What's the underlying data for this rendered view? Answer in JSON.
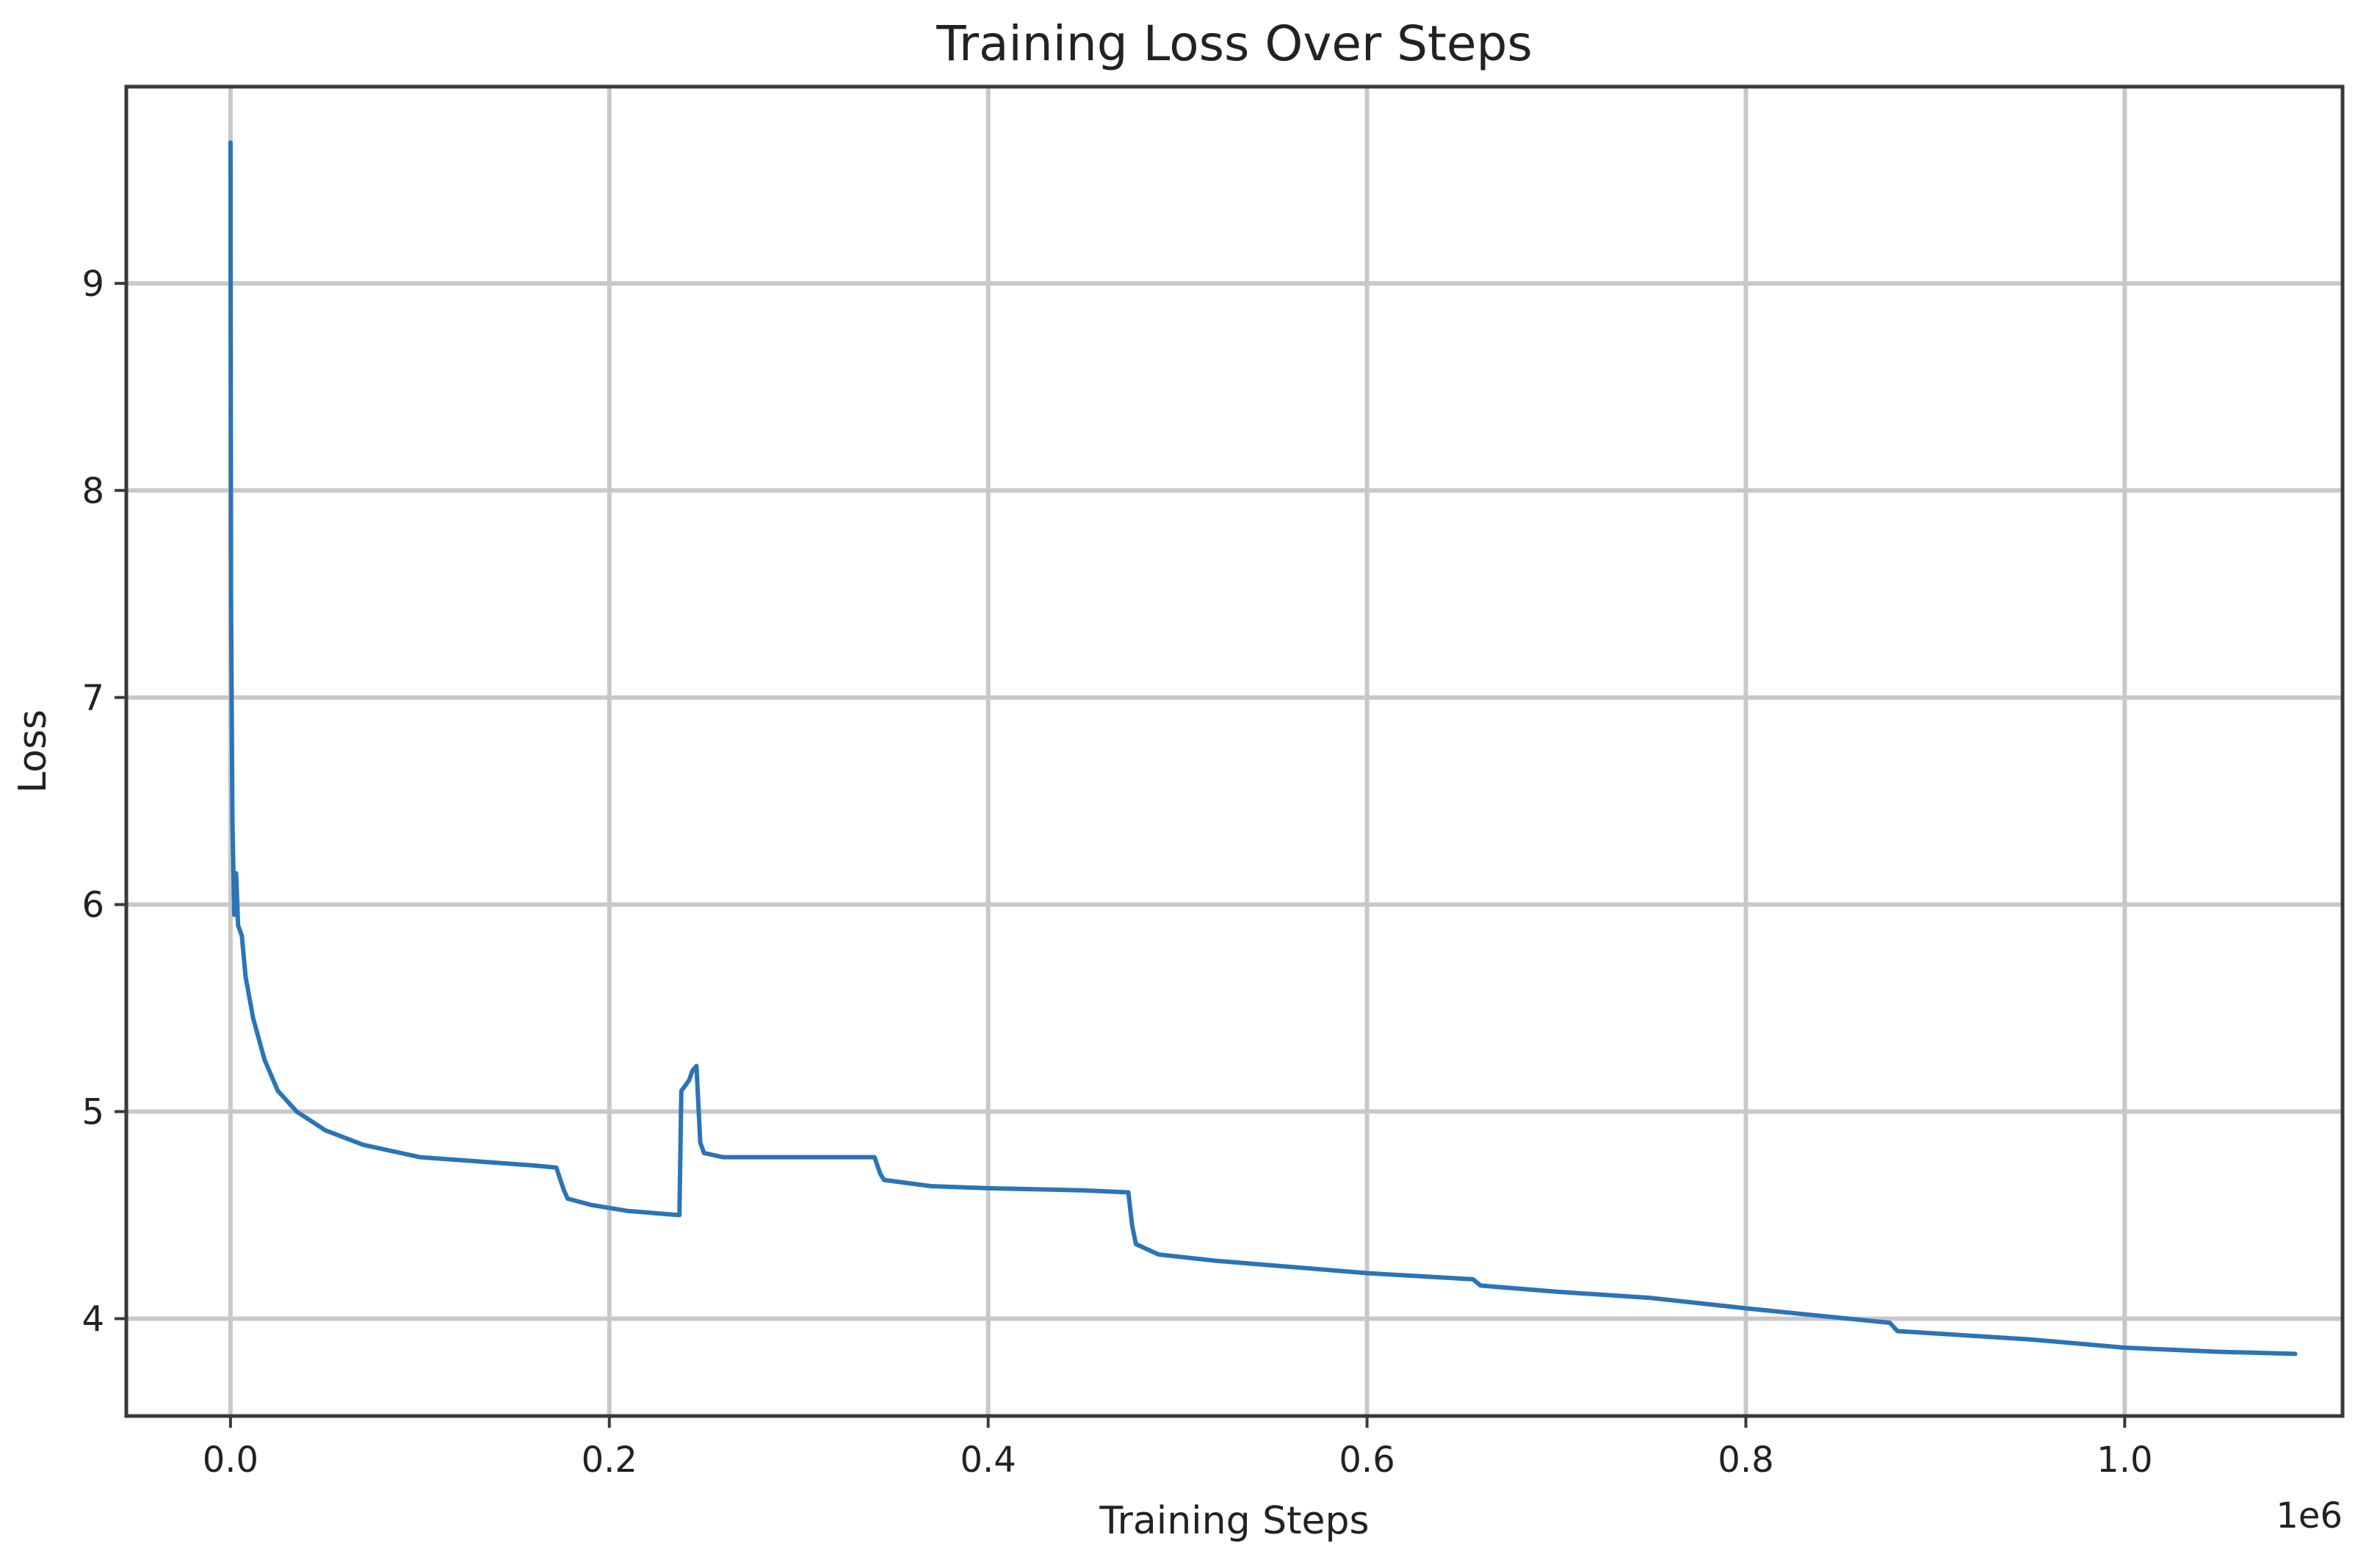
{
  "chart_data": {
    "type": "line",
    "title": "Training Loss Over Steps",
    "xlabel": "Training Steps",
    "ylabel": "Loss",
    "x_offset_label": "1e6",
    "xlim": [
      -0.055,
      1.115
    ],
    "ylim": [
      3.53,
      9.95
    ],
    "x_ticks": [
      0.0,
      0.2,
      0.4,
      0.6,
      0.8,
      1.0
    ],
    "x_tick_labels": [
      "0.0",
      "0.2",
      "0.4",
      "0.6",
      "0.8",
      "1.0"
    ],
    "y_ticks": [
      4,
      5,
      6,
      7,
      8,
      9
    ],
    "y_tick_labels": [
      "4",
      "5",
      "6",
      "7",
      "8",
      "9"
    ],
    "grid": true,
    "series": [
      {
        "color": "#2b74b6",
        "x": [
          0.0,
          0.0003,
          0.001,
          0.002,
          0.003,
          0.004,
          0.006,
          0.008,
          0.012,
          0.018,
          0.025,
          0.035,
          0.05,
          0.07,
          0.1,
          0.13,
          0.16,
          0.172,
          0.176,
          0.178,
          0.19,
          0.21,
          0.237,
          0.238,
          0.242,
          0.244,
          0.246,
          0.248,
          0.25,
          0.26,
          0.3,
          0.34,
          0.343,
          0.345,
          0.37,
          0.4,
          0.45,
          0.474,
          0.476,
          0.478,
          0.49,
          0.52,
          0.6,
          0.656,
          0.66,
          0.7,
          0.75,
          0.8,
          0.876,
          0.88,
          0.95,
          1.0,
          1.05,
          1.09
        ],
        "y": [
          9.68,
          7.5,
          6.4,
          5.95,
          6.15,
          5.9,
          5.85,
          5.65,
          5.45,
          5.25,
          5.1,
          5.0,
          4.91,
          4.84,
          4.78,
          4.76,
          4.74,
          4.73,
          4.62,
          4.58,
          4.55,
          4.52,
          4.5,
          5.1,
          5.15,
          5.2,
          5.22,
          4.85,
          4.8,
          4.78,
          4.78,
          4.78,
          4.7,
          4.67,
          4.64,
          4.63,
          4.62,
          4.61,
          4.45,
          4.36,
          4.31,
          4.28,
          4.22,
          4.19,
          4.16,
          4.13,
          4.1,
          4.05,
          3.98,
          3.94,
          3.9,
          3.86,
          3.84,
          3.83
        ]
      }
    ]
  }
}
